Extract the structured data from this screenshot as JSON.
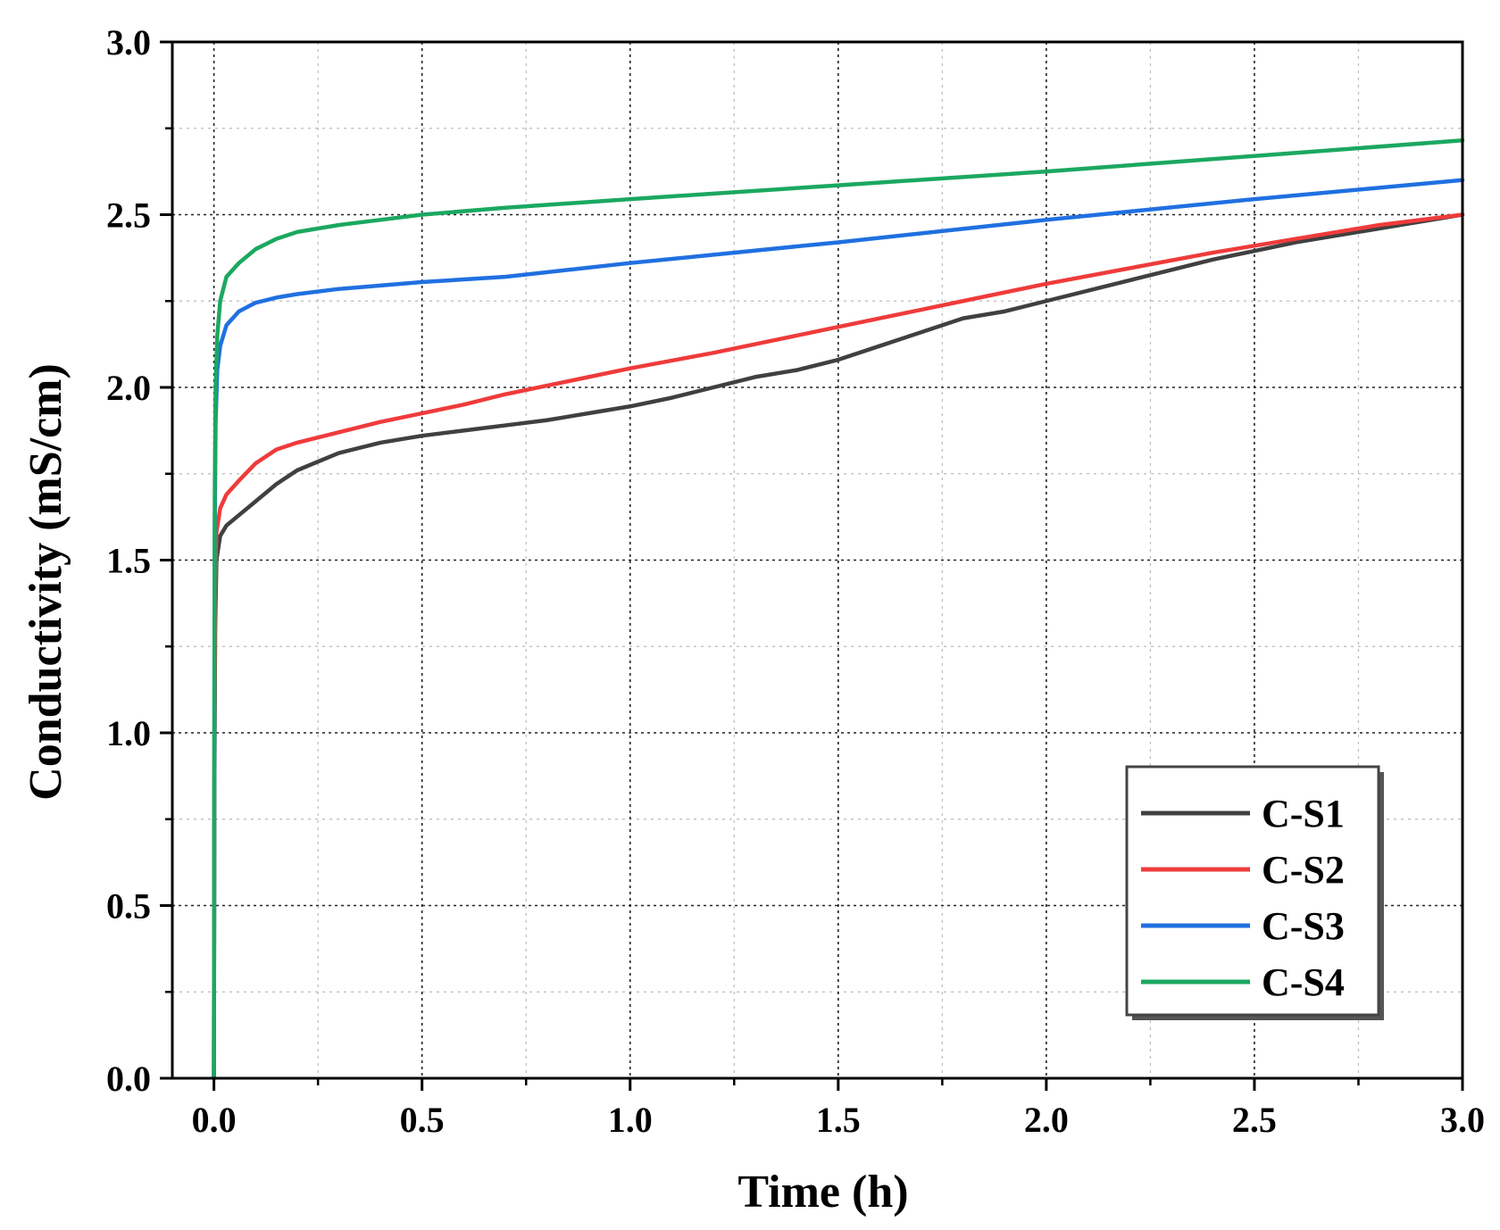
{
  "chart_data": {
    "type": "line",
    "xlabel": "Time (h)",
    "ylabel": "Conductivity (mS/cm)",
    "xlim": [
      -0.1,
      3.0
    ],
    "ylim": [
      0.0,
      3.0
    ],
    "x_ticks": [
      "0.0",
      "0.5",
      "1.0",
      "1.5",
      "2.0",
      "2.5",
      "3.0"
    ],
    "y_ticks": [
      "0.0",
      "0.5",
      "1.0",
      "1.5",
      "2.0",
      "2.5",
      "3.0"
    ],
    "grid": true,
    "legend_position": "bottom-right",
    "series": [
      {
        "name": "C-S1",
        "color": "#404040",
        "points": [
          [
            0,
            0
          ],
          [
            0.001,
            0.8
          ],
          [
            0.003,
            1.3
          ],
          [
            0.006,
            1.5
          ],
          [
            0.015,
            1.57
          ],
          [
            0.03,
            1.6
          ],
          [
            0.06,
            1.63
          ],
          [
            0.1,
            1.67
          ],
          [
            0.15,
            1.72
          ],
          [
            0.2,
            1.76
          ],
          [
            0.3,
            1.81
          ],
          [
            0.4,
            1.84
          ],
          [
            0.5,
            1.86
          ],
          [
            0.6,
            1.875
          ],
          [
            0.7,
            1.89
          ],
          [
            0.8,
            1.905
          ],
          [
            0.9,
            1.925
          ],
          [
            1.0,
            1.945
          ],
          [
            1.1,
            1.97
          ],
          [
            1.2,
            2.0
          ],
          [
            1.3,
            2.03
          ],
          [
            1.4,
            2.05
          ],
          [
            1.5,
            2.08
          ],
          [
            1.6,
            2.12
          ],
          [
            1.7,
            2.16
          ],
          [
            1.8,
            2.2
          ],
          [
            1.9,
            2.22
          ],
          [
            2.0,
            2.25
          ],
          [
            2.2,
            2.31
          ],
          [
            2.4,
            2.37
          ],
          [
            2.6,
            2.42
          ],
          [
            2.8,
            2.46
          ],
          [
            3.0,
            2.5
          ]
        ]
      },
      {
        "name": "C-S2",
        "color": "#ef3b3b",
        "points": [
          [
            0,
            0
          ],
          [
            0.001,
            0.9
          ],
          [
            0.003,
            1.4
          ],
          [
            0.006,
            1.58
          ],
          [
            0.015,
            1.65
          ],
          [
            0.03,
            1.69
          ],
          [
            0.06,
            1.73
          ],
          [
            0.1,
            1.78
          ],
          [
            0.15,
            1.82
          ],
          [
            0.2,
            1.84
          ],
          [
            0.3,
            1.87
          ],
          [
            0.4,
            1.9
          ],
          [
            0.5,
            1.925
          ],
          [
            0.6,
            1.95
          ],
          [
            0.7,
            1.98
          ],
          [
            0.8,
            2.005
          ],
          [
            0.9,
            2.03
          ],
          [
            1.0,
            2.055
          ],
          [
            1.2,
            2.1
          ],
          [
            1.4,
            2.15
          ],
          [
            1.6,
            2.2
          ],
          [
            1.8,
            2.25
          ],
          [
            2.0,
            2.3
          ],
          [
            2.2,
            2.345
          ],
          [
            2.4,
            2.39
          ],
          [
            2.6,
            2.43
          ],
          [
            2.8,
            2.47
          ],
          [
            3.0,
            2.5
          ]
        ]
      },
      {
        "name": "C-S3",
        "color": "#2070e0",
        "points": [
          [
            0,
            0
          ],
          [
            0.001,
            1.0
          ],
          [
            0.002,
            1.6
          ],
          [
            0.004,
            1.9
          ],
          [
            0.008,
            2.05
          ],
          [
            0.015,
            2.12
          ],
          [
            0.03,
            2.18
          ],
          [
            0.06,
            2.22
          ],
          [
            0.1,
            2.245
          ],
          [
            0.15,
            2.26
          ],
          [
            0.2,
            2.27
          ],
          [
            0.3,
            2.285
          ],
          [
            0.4,
            2.295
          ],
          [
            0.5,
            2.305
          ],
          [
            0.7,
            2.32
          ],
          [
            1.0,
            2.36
          ],
          [
            1.5,
            2.42
          ],
          [
            2.0,
            2.485
          ],
          [
            2.5,
            2.545
          ],
          [
            3.0,
            2.6
          ]
        ]
      },
      {
        "name": "C-S4",
        "color": "#1ba860",
        "points": [
          [
            0,
            0
          ],
          [
            0.001,
            1.1
          ],
          [
            0.002,
            1.7
          ],
          [
            0.004,
            2.0
          ],
          [
            0.008,
            2.15
          ],
          [
            0.015,
            2.25
          ],
          [
            0.03,
            2.32
          ],
          [
            0.06,
            2.36
          ],
          [
            0.1,
            2.4
          ],
          [
            0.15,
            2.43
          ],
          [
            0.2,
            2.45
          ],
          [
            0.3,
            2.47
          ],
          [
            0.4,
            2.485
          ],
          [
            0.5,
            2.5
          ],
          [
            0.7,
            2.52
          ],
          [
            1.0,
            2.545
          ],
          [
            1.5,
            2.585
          ],
          [
            2.0,
            2.625
          ],
          [
            2.5,
            2.67
          ],
          [
            3.0,
            2.715
          ]
        ]
      }
    ]
  }
}
